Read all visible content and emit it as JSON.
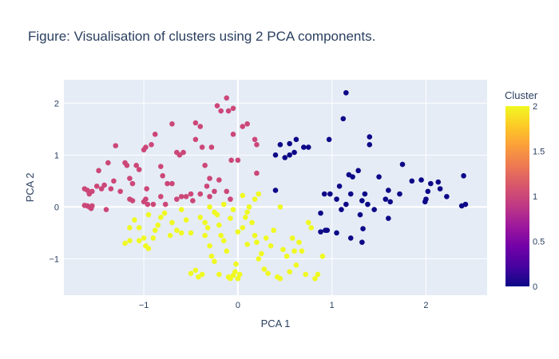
{
  "chart_data": {
    "type": "scatter",
    "title": "Figure: Visualisation of clusters using 2 PCA components.",
    "xlabel": "PCA 1",
    "ylabel": "PCA 2",
    "xlim": [
      -1.85,
      2.65
    ],
    "ylim": [
      -1.7,
      2.45
    ],
    "xticks": [
      {
        "value": -1,
        "label": "−1"
      },
      {
        "value": 0,
        "label": "0"
      },
      {
        "value": 1,
        "label": "1"
      },
      {
        "value": 2,
        "label": "2"
      }
    ],
    "yticks": [
      {
        "value": -1,
        "label": "−1"
      },
      {
        "value": 0,
        "label": "0"
      },
      {
        "value": 1,
        "label": "1"
      },
      {
        "value": 2,
        "label": "2"
      }
    ],
    "grid": true,
    "legend": "none",
    "colorbar": {
      "title": "Cluster",
      "range": [
        0,
        2
      ],
      "ticks": [
        {
          "value": 0,
          "label": "0"
        },
        {
          "value": 0.5,
          "label": "0.5"
        },
        {
          "value": 1,
          "label": "1"
        },
        {
          "value": 1.5,
          "label": "1.5"
        },
        {
          "value": 2,
          "label": "2"
        }
      ],
      "colorscale": [
        "#0d0887",
        "#46039f",
        "#7201a8",
        "#9c179e",
        "#bd3786",
        "#d8576b",
        "#ed7953",
        "#fb9f3a",
        "#fdca26",
        "#f0f921"
      ]
    },
    "series": [
      {
        "cluster": 0,
        "color": "#0d0887",
        "points": [
          [
            1.15,
            2.2
          ],
          [
            1.12,
            1.7
          ],
          [
            0.62,
            1.3
          ],
          [
            0.55,
            1.22
          ],
          [
            0.7,
            1.15
          ],
          [
            0.75,
            1.15
          ],
          [
            0.45,
            1.2
          ],
          [
            0.4,
            1.0
          ],
          [
            0.5,
            0.95
          ],
          [
            0.55,
            1.0
          ],
          [
            0.6,
            1.05
          ],
          [
            0.97,
            1.3
          ],
          [
            1.4,
            1.35
          ],
          [
            1.4,
            1.2
          ],
          [
            1.28,
            0.7
          ],
          [
            1.22,
            0.58
          ],
          [
            1.5,
            0.58
          ],
          [
            1.75,
            0.82
          ],
          [
            1.85,
            0.5
          ],
          [
            1.95,
            0.52
          ],
          [
            2.05,
            0.45
          ],
          [
            2.13,
            0.48
          ],
          [
            2.15,
            0.35
          ],
          [
            2.22,
            0.2
          ],
          [
            2.4,
            0.6
          ],
          [
            2.42,
            0.05
          ],
          [
            2.38,
            0.02
          ],
          [
            2.02,
            0.3
          ],
          [
            2.0,
            0.15
          ],
          [
            1.99,
            0.1
          ],
          [
            1.72,
            0.25
          ],
          [
            1.6,
            0.32
          ],
          [
            1.57,
            0.15
          ],
          [
            1.62,
            0.1
          ],
          [
            1.35,
            0.25
          ],
          [
            1.32,
            0.12
          ],
          [
            1.38,
            0.05
          ],
          [
            1.45,
            -0.05
          ],
          [
            1.3,
            -0.15
          ],
          [
            1.2,
            0.25
          ],
          [
            1.15,
            0.05
          ],
          [
            1.08,
            0.4
          ],
          [
            1.05,
            0.15
          ],
          [
            1.1,
            -0.05
          ],
          [
            0.98,
            0.25
          ],
          [
            0.92,
            0.25
          ],
          [
            0.88,
            -0.12
          ],
          [
            0.93,
            -0.45
          ],
          [
            0.88,
            -0.48
          ],
          [
            0.95,
            -0.45
          ],
          [
            1.05,
            -0.5
          ],
          [
            1.2,
            -0.6
          ],
          [
            1.33,
            -0.42
          ],
          [
            1.32,
            -0.68
          ],
          [
            1.6,
            -0.22
          ],
          [
            0.4,
            0.32
          ],
          [
            1.18,
            0.62
          ]
        ]
      },
      {
        "cluster": 1,
        "color": "#cc4778",
        "points": [
          [
            -1.63,
            0.35
          ],
          [
            -1.6,
            0.32
          ],
          [
            -1.58,
            0.25
          ],
          [
            -1.55,
            0.3
          ],
          [
            -1.5,
            0.4
          ],
          [
            -1.45,
            0.35
          ],
          [
            -1.42,
            0.42
          ],
          [
            -1.48,
            0.7
          ],
          [
            -1.38,
            0.85
          ],
          [
            -1.35,
            0.35
          ],
          [
            -1.32,
            0.5
          ],
          [
            -1.3,
            1.18
          ],
          [
            -1.25,
            0.3
          ],
          [
            -1.2,
            0.85
          ],
          [
            -1.18,
            0.8
          ],
          [
            -1.15,
            0.55
          ],
          [
            -1.12,
            0.45
          ],
          [
            -1.15,
            0.15
          ],
          [
            -1.12,
            0.12
          ],
          [
            -1.08,
            0.8
          ],
          [
            -1.05,
            0.72
          ],
          [
            -0.97,
            0.35
          ],
          [
            -0.98,
            0.15
          ],
          [
            -0.96,
            0.05
          ],
          [
            -1.63,
            0.03
          ],
          [
            -1.6,
            0.02
          ],
          [
            -1.58,
            0.0
          ],
          [
            -1.56,
            -0.03
          ],
          [
            -1.55,
            0.02
          ],
          [
            -1.4,
            -0.05
          ],
          [
            -1.0,
            1.1
          ],
          [
            -0.98,
            1.15
          ],
          [
            -0.92,
            1.2
          ],
          [
            -0.88,
            1.4
          ],
          [
            -0.82,
            0.78
          ],
          [
            -0.8,
            0.6
          ],
          [
            -0.75,
            0.45
          ],
          [
            -0.82,
            0.2
          ],
          [
            -0.77,
            0.05
          ],
          [
            -0.7,
            1.6
          ],
          [
            -0.65,
            1.05
          ],
          [
            -0.62,
            1.0
          ],
          [
            -0.58,
            1.05
          ],
          [
            -0.55,
            0.2
          ],
          [
            -0.5,
            0.25
          ],
          [
            -0.45,
            1.62
          ],
          [
            -0.45,
            1.3
          ],
          [
            -0.4,
            1.55
          ],
          [
            -0.38,
            1.15
          ],
          [
            -0.35,
            0.8
          ],
          [
            -0.33,
            0.4
          ],
          [
            -0.3,
            0.55
          ],
          [
            -0.28,
            1.15
          ],
          [
            -0.22,
            1.95
          ],
          [
            -0.18,
            1.85
          ],
          [
            -0.12,
            2.1
          ],
          [
            -0.1,
            1.85
          ],
          [
            -0.05,
            1.9
          ],
          [
            -0.05,
            1.4
          ],
          [
            -0.07,
            0.9
          ],
          [
            -0.2,
            0.52
          ],
          [
            -0.12,
            0.3
          ],
          [
            -0.08,
            0.15
          ],
          [
            -0.25,
            0.3
          ],
          [
            -0.4,
            0.25
          ],
          [
            -0.6,
            0.2
          ],
          [
            -0.65,
            0.15
          ],
          [
            -0.7,
            0.45
          ],
          [
            -0.9,
            0.05
          ],
          [
            -1.0,
            0.1
          ],
          [
            -0.3,
            0.2
          ],
          [
            -0.48,
            0.12
          ],
          [
            0.05,
            1.55
          ],
          [
            0.1,
            1.6
          ],
          [
            0.18,
            1.3
          ],
          [
            0.2,
            1.2
          ],
          [
            0.2,
            0.65
          ],
          [
            0.0,
            0.9
          ]
        ]
      },
      {
        "cluster": 2,
        "color": "#f0f921",
        "points": [
          [
            -1.2,
            -0.7
          ],
          [
            -1.15,
            -0.65
          ],
          [
            -1.15,
            -0.4
          ],
          [
            -1.05,
            -0.4
          ],
          [
            -1.05,
            -0.65
          ],
          [
            -1.1,
            -0.25
          ],
          [
            -1.0,
            -0.6
          ],
          [
            -0.98,
            -0.75
          ],
          [
            -0.95,
            -0.8
          ],
          [
            -0.9,
            -0.6
          ],
          [
            -0.88,
            -0.45
          ],
          [
            -0.85,
            -0.35
          ],
          [
            -0.82,
            -0.2
          ],
          [
            -0.78,
            -0.12
          ],
          [
            -0.72,
            -0.55
          ],
          [
            -0.7,
            -0.3
          ],
          [
            -0.65,
            -0.45
          ],
          [
            -0.6,
            -0.5
          ],
          [
            -0.55,
            -0.25
          ],
          [
            -0.5,
            -0.5
          ],
          [
            -0.5,
            -1.28
          ],
          [
            -0.45,
            -1.22
          ],
          [
            -0.42,
            -1.35
          ],
          [
            -0.38,
            -1.3
          ],
          [
            -0.35,
            -0.55
          ],
          [
            -0.32,
            -0.4
          ],
          [
            -0.3,
            -0.75
          ],
          [
            -0.28,
            -0.95
          ],
          [
            -0.25,
            -1.05
          ],
          [
            -0.22,
            -0.15
          ],
          [
            -0.2,
            -0.35
          ],
          [
            -0.18,
            -0.55
          ],
          [
            -0.15,
            -0.65
          ],
          [
            -0.12,
            -0.85
          ],
          [
            -0.1,
            -1.35
          ],
          [
            -0.08,
            -1.38
          ],
          [
            -0.05,
            -1.32
          ],
          [
            -0.03,
            -1.25
          ],
          [
            0.0,
            -1.38
          ],
          [
            0.02,
            -1.3
          ],
          [
            0.05,
            -0.4
          ],
          [
            0.08,
            -0.2
          ],
          [
            0.1,
            -0.1
          ],
          [
            0.12,
            0.0
          ],
          [
            0.15,
            -0.3
          ],
          [
            0.18,
            -0.55
          ],
          [
            0.2,
            -0.68
          ],
          [
            0.22,
            -1.0
          ],
          [
            0.25,
            -0.9
          ],
          [
            0.28,
            -1.2
          ],
          [
            0.32,
            -1.28
          ],
          [
            0.35,
            -0.75
          ],
          [
            0.38,
            -0.45
          ],
          [
            0.42,
            -1.35
          ],
          [
            0.45,
            -1.38
          ],
          [
            0.48,
            -0.82
          ],
          [
            0.52,
            -0.95
          ],
          [
            0.55,
            -1.25
          ],
          [
            0.58,
            -0.6
          ],
          [
            0.62,
            -1.12
          ],
          [
            0.65,
            -0.68
          ],
          [
            0.68,
            -0.85
          ],
          [
            0.72,
            -1.3
          ],
          [
            0.75,
            -0.3
          ],
          [
            0.78,
            -0.4
          ],
          [
            0.82,
            -1.38
          ],
          [
            0.85,
            -1.3
          ],
          [
            0.9,
            -0.95
          ],
          [
            -0.3,
            0.0
          ],
          [
            -0.25,
            -0.1
          ],
          [
            -0.15,
            0.05
          ],
          [
            -0.05,
            -0.05
          ],
          [
            0.18,
            0.15
          ],
          [
            0.22,
            0.25
          ],
          [
            0.05,
            0.22
          ],
          [
            0.45,
            0.0
          ],
          [
            -0.95,
            -0.15
          ],
          [
            -0.6,
            -0.05
          ],
          [
            -0.4,
            -0.2
          ],
          [
            -0.35,
            -0.3
          ],
          [
            -0.08,
            -0.22
          ],
          [
            0.0,
            -0.48
          ],
          [
            0.1,
            -0.72
          ],
          [
            0.3,
            -0.6
          ],
          [
            -0.02,
            -1.1
          ],
          [
            -0.2,
            -1.3
          ],
          [
            0.6,
            -0.85
          ]
        ]
      }
    ]
  }
}
